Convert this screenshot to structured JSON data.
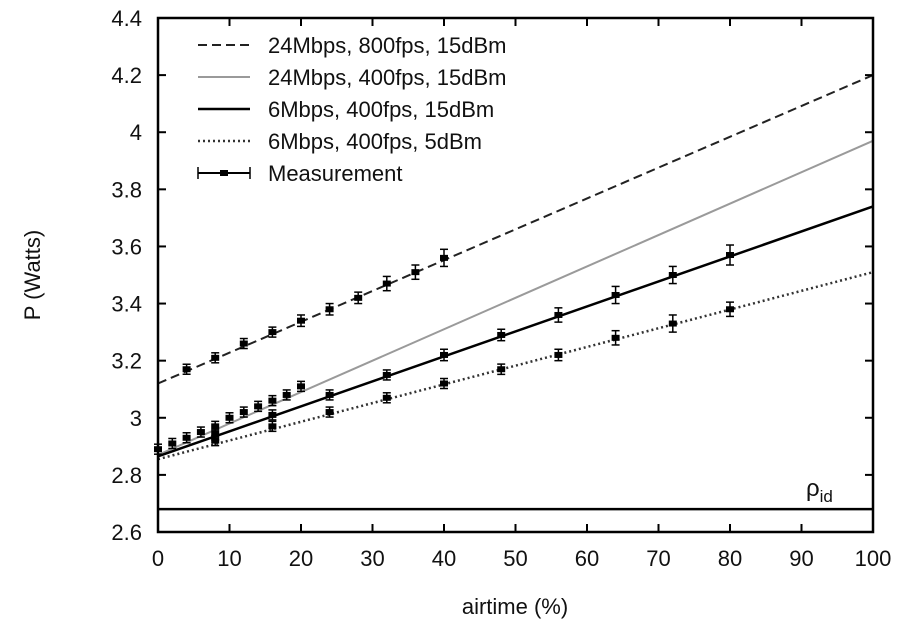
{
  "chart_data": {
    "type": "line",
    "xlabel": "airtime (%)",
    "ylabel": "P (Watts)",
    "xlim": [
      0,
      100
    ],
    "ylim": [
      2.6,
      4.4
    ],
    "xticks": [
      0,
      10,
      20,
      30,
      40,
      50,
      60,
      70,
      80,
      90,
      100
    ],
    "yticks": [
      2.6,
      2.8,
      3,
      3.2,
      3.4,
      3.6,
      3.8,
      4,
      4.2,
      4.4
    ],
    "ytick_labels": [
      "2.6",
      "2.8",
      "3",
      "3.2",
      "3.4",
      "3.6",
      "3.8",
      "4",
      "4.2",
      "4.4"
    ],
    "grid": false,
    "legend_position": "top-left",
    "series": [
      {
        "name": "24Mbps, 800fps, 15dBm",
        "style": "dashed",
        "color": "#222222",
        "x": [
          0,
          100
        ],
        "y": [
          3.12,
          4.2
        ]
      },
      {
        "name": "24Mbps, 400fps, 15dBm",
        "style": "light-solid",
        "color": "#9a9a9a",
        "x": [
          0,
          100
        ],
        "y": [
          2.87,
          3.97
        ]
      },
      {
        "name": "6Mbps, 400fps, 15dBm",
        "style": "solid",
        "color": "#000000",
        "x": [
          0,
          100
        ],
        "y": [
          2.865,
          3.74
        ]
      },
      {
        "name": "6Mbps, 400fps, 5dBm",
        "style": "dotted",
        "color": "#333333",
        "x": [
          0,
          100
        ],
        "y": [
          2.855,
          3.51
        ]
      }
    ],
    "measurement": {
      "name": "Measurement",
      "groups": [
        {
          "x": [
            4,
            8,
            12,
            16,
            20,
            24,
            28,
            32,
            36,
            40
          ],
          "y": [
            3.17,
            3.21,
            3.26,
            3.3,
            3.34,
            3.38,
            3.42,
            3.47,
            3.51,
            3.56
          ],
          "err": [
            0.01,
            0.01,
            0.01,
            0.015,
            0.02,
            0.02,
            0.02,
            0.025,
            0.025,
            0.03
          ]
        },
        {
          "x": [
            0,
            2,
            4,
            6,
            8,
            10,
            12,
            14,
            16,
            18,
            20
          ],
          "y": [
            2.89,
            2.91,
            2.93,
            2.95,
            2.97,
            3.0,
            3.02,
            3.04,
            3.06,
            3.08,
            3.11
          ],
          "err": [
            0.005,
            0.005,
            0.008,
            0.008,
            0.01,
            0.01,
            0.01,
            0.01,
            0.01,
            0.01,
            0.01
          ]
        },
        {
          "x": [
            8,
            16,
            24,
            32,
            40,
            48,
            56,
            64,
            72,
            80
          ],
          "y": [
            2.94,
            3.01,
            3.08,
            3.15,
            3.22,
            3.29,
            3.36,
            3.43,
            3.5,
            3.57
          ],
          "err": [
            0.01,
            0.01,
            0.015,
            0.015,
            0.02,
            0.02,
            0.025,
            0.03,
            0.03,
            0.035
          ]
        },
        {
          "x": [
            8,
            16,
            24,
            32,
            40,
            48,
            56,
            64,
            72,
            80
          ],
          "y": [
            2.92,
            2.97,
            3.02,
            3.07,
            3.12,
            3.17,
            3.22,
            3.28,
            3.33,
            3.38
          ],
          "err": [
            0.01,
            0.01,
            0.012,
            0.012,
            0.015,
            0.018,
            0.02,
            0.025,
            0.03,
            0.025
          ]
        }
      ]
    },
    "reference_line": {
      "label_main": "ρ",
      "label_sub": "id",
      "y": 2.68
    }
  }
}
